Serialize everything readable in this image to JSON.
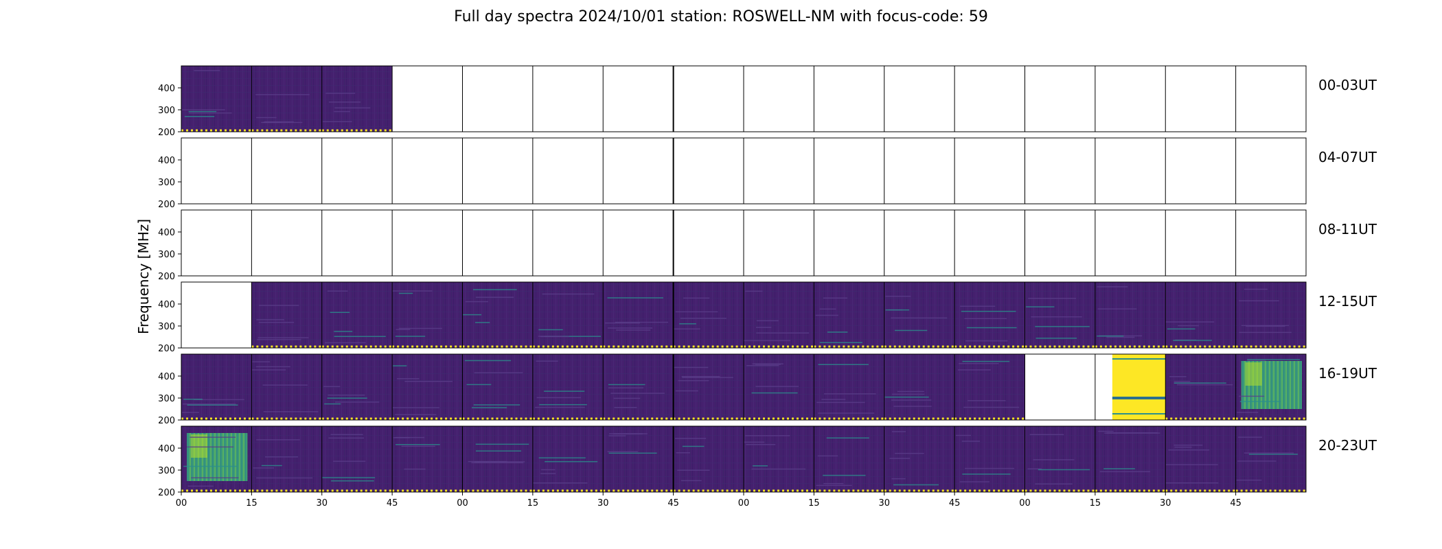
{
  "chart_data": {
    "type": "heatmap",
    "title": "Full day spectra 2024/10/01 station: ROSWELL-NM with focus-code: 59",
    "ylabel": "Frequency [MHz]",
    "y_ticks": [
      "200",
      "300",
      "400"
    ],
    "ylim": [
      200,
      500
    ],
    "x_ticks": [
      "00",
      "15",
      "30",
      "45",
      "00",
      "15",
      "30",
      "45",
      "00",
      "15",
      "30",
      "45",
      "00",
      "15",
      "30",
      "45"
    ],
    "rows": [
      {
        "label": "00-03UT",
        "blocks": [
          "d",
          "d",
          "d",
          "e",
          "e",
          "e",
          "e",
          "e",
          "e",
          "e",
          "e",
          "e",
          "e",
          "e",
          "e",
          "e"
        ]
      },
      {
        "label": "04-07UT",
        "blocks": [
          "e",
          "e",
          "e",
          "e",
          "e",
          "e",
          "e",
          "e",
          "e",
          "e",
          "e",
          "e",
          "e",
          "e",
          "e",
          "e"
        ]
      },
      {
        "label": "08-11UT",
        "blocks": [
          "e",
          "e",
          "e",
          "e",
          "e",
          "e",
          "e",
          "e",
          "e",
          "e",
          "e",
          "e",
          "e",
          "e",
          "e",
          "e"
        ]
      },
      {
        "label": "12-15UT",
        "blocks": [
          "e",
          "d",
          "d",
          "d",
          "d",
          "d",
          "d",
          "d",
          "d",
          "d",
          "d",
          "d",
          "d",
          "d",
          "d",
          "d"
        ]
      },
      {
        "label": "16-19UT",
        "blocks": [
          "d",
          "d",
          "d",
          "d",
          "d",
          "d",
          "d",
          "d",
          "d",
          "d",
          "d",
          "d",
          "e",
          "y",
          "d",
          "g"
        ]
      },
      {
        "label": "20-23UT",
        "blocks": [
          "g",
          "d",
          "d",
          "d",
          "d",
          "d",
          "d",
          "d",
          "d",
          "d",
          "d",
          "d",
          "d",
          "d",
          "d",
          "d"
        ]
      }
    ],
    "block_legend": {
      "d": "data",
      "e": "no data",
      "y": "saturated",
      "g": "elevated"
    },
    "colors": {
      "background_low": "#3b1f6e",
      "background_mid": "#46206f",
      "teal": "#2b8f8c",
      "green": "#35b779",
      "yellow": "#fde725",
      "frame": "#000000"
    }
  }
}
